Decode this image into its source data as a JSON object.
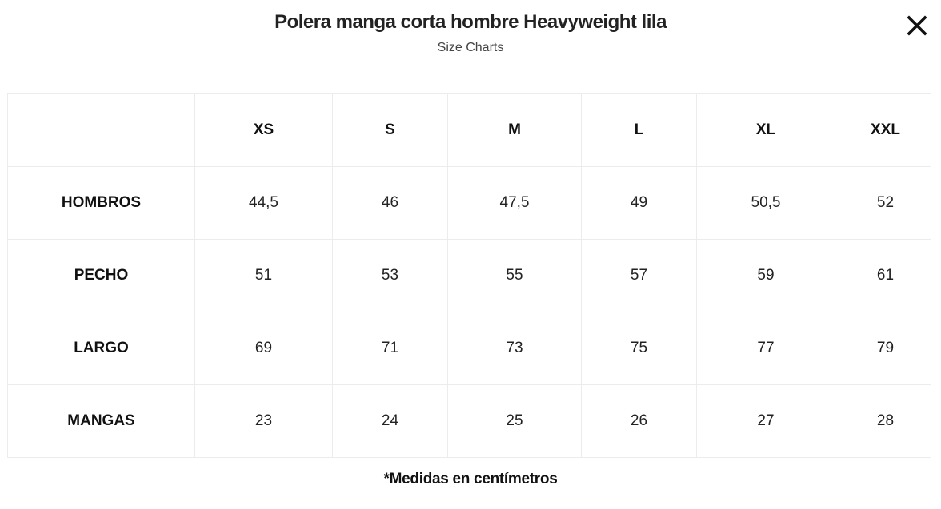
{
  "modal": {
    "title": "Polera manga corta hombre Heavyweight lila",
    "subtitle": "Size Charts",
    "close_icon": "close-icon"
  },
  "table": {
    "corner": "",
    "sizes": [
      "XS",
      "S",
      "M",
      "L",
      "XL",
      "XXL"
    ],
    "rows": [
      {
        "label": "HOMBROS",
        "values": [
          "44,5",
          "46",
          "47,5",
          "49",
          "50,5",
          "52"
        ]
      },
      {
        "label": "PECHO",
        "values": [
          "51",
          "53",
          "55",
          "57",
          "59",
          "61"
        ]
      },
      {
        "label": "LARGO",
        "values": [
          "69",
          "71",
          "73",
          "75",
          "77",
          "79"
        ]
      },
      {
        "label": "MANGAS",
        "values": [
          "23",
          "24",
          "25",
          "26",
          "27",
          "28"
        ]
      }
    ]
  },
  "footnote": "*Medidas en centímetros"
}
